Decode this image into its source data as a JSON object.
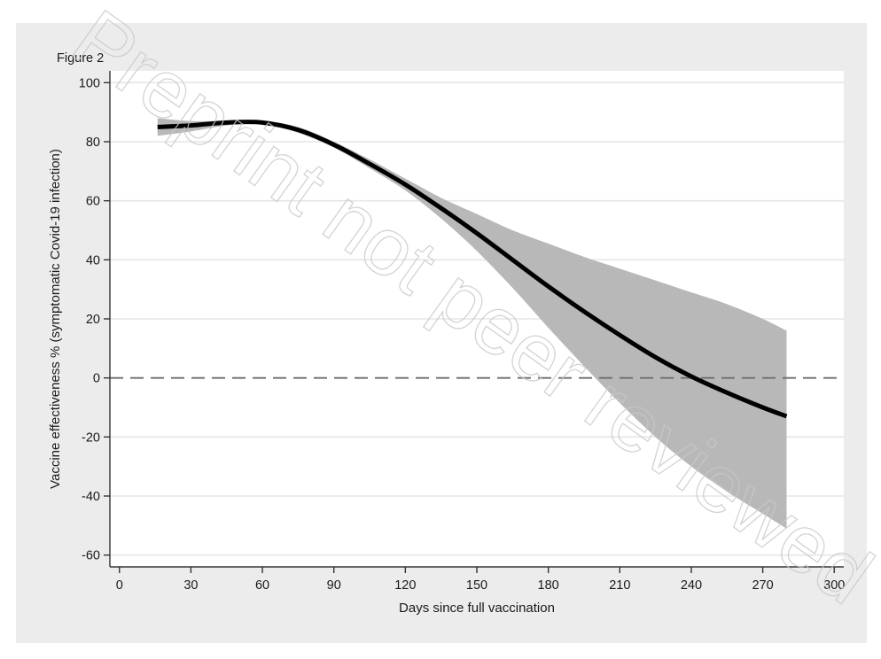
{
  "figure_label": "Figure 2",
  "watermark": "Preprint not peer reviewed",
  "colors": {
    "outer_background": "#ececec",
    "plot_background": "#ffffff",
    "gridline": "#e6e6e6",
    "ci_band": "#b8b8b8",
    "line": "#000000",
    "reference_line": "#6e6e6e"
  },
  "chart_data": {
    "type": "line",
    "title": "",
    "xlabel": "Days since full vaccination",
    "ylabel": "Vaccine effectiveness % (symptomatic Covid-19 infection)",
    "xlim": [
      -4,
      304
    ],
    "ylim": [
      -64,
      104
    ],
    "xticks": [
      0,
      30,
      60,
      90,
      120,
      150,
      180,
      210,
      240,
      270,
      300
    ],
    "yticks": [
      100,
      80,
      60,
      40,
      20,
      0,
      -20,
      -40,
      -60
    ],
    "grid": "horizontal",
    "legend": "none",
    "reference_line": {
      "y": 0,
      "style": "dashed"
    },
    "x": [
      16,
      30,
      45,
      60,
      75,
      90,
      105,
      120,
      135,
      150,
      165,
      180,
      195,
      210,
      225,
      240,
      255,
      270,
      280
    ],
    "series": [
      {
        "values": [
          85,
          85.5,
          86.5,
          86.5,
          84,
          79,
          72.5,
          65.5,
          57.5,
          49,
          40,
          31,
          22.5,
          14.5,
          7,
          0.5,
          -5,
          -10,
          -13
        ]
      }
    ],
    "ci_upper": [
      88,
      87,
      87,
      87,
      85,
      80,
      74,
      67.5,
      61,
      55.5,
      50,
      45.5,
      41,
      37,
      33,
      29,
      25,
      20,
      16
    ],
    "ci_lower": [
      82,
      83.5,
      85.5,
      86,
      83,
      78,
      71,
      63.5,
      54,
      43,
      30.5,
      17,
      4,
      -8.5,
      -20,
      -30,
      -38.5,
      -46,
      -51
    ]
  }
}
